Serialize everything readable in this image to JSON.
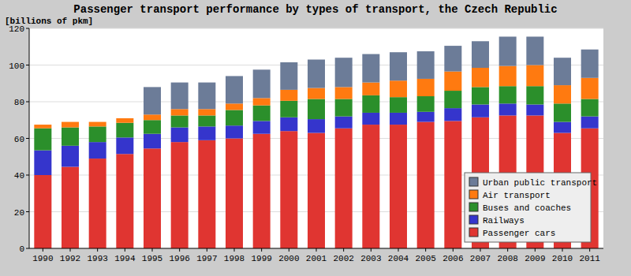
{
  "chart_data": {
    "type": "bar",
    "stacked": true,
    "grid": true,
    "legend": "bottom-right",
    "title": "Passenger transport performance by types of transport, the Czech Republic",
    "y_label": "[billions of pkm]",
    "categories": [
      "1990",
      "1992",
      "1993",
      "1994",
      "1995",
      "1996",
      "1997",
      "1998",
      "1999",
      "2000",
      "2001",
      "2002",
      "2003",
      "2004",
      "2005",
      "2006",
      "2007",
      "2008",
      "2009",
      "2010",
      "2011"
    ],
    "ylim": [
      0,
      120
    ],
    "yticks": [
      0,
      20,
      40,
      60,
      80,
      100,
      120
    ],
    "series": [
      {
        "name": "Passenger cars",
        "color": "#e03531",
        "values": [
          40,
          44.5,
          49,
          51.5,
          54.5,
          58,
          59,
          60,
          62.5,
          64,
          63,
          65.5,
          67.5,
          67.5,
          69,
          69.5,
          71.5,
          72.5,
          72.5,
          63,
          65.5
        ]
      },
      {
        "name": "Railways",
        "color": "#3535cc",
        "values": [
          13.5,
          11.5,
          9,
          9,
          8,
          8,
          7.5,
          7,
          7,
          7.5,
          7.5,
          6.5,
          6.5,
          6.5,
          5.5,
          7,
          7,
          6.5,
          6,
          6,
          6.5
        ]
      },
      {
        "name": "Buses and coaches",
        "color": "#2b8f2b",
        "values": [
          12,
          10,
          8.5,
          8,
          7.5,
          6.5,
          6,
          8.5,
          8.5,
          9,
          11,
          9.5,
          9.5,
          8.5,
          8.5,
          9.5,
          9.5,
          9.5,
          10,
          10,
          9.5
        ]
      },
      {
        "name": "Air transport",
        "color": "#ff7a10",
        "values": [
          2,
          3,
          2.5,
          2.5,
          3,
          3.5,
          3.5,
          3.5,
          4,
          6,
          6,
          6.5,
          7,
          9,
          9.5,
          10.5,
          10.5,
          11,
          11.5,
          10,
          11.5
        ]
      },
      {
        "name": "Urban public transport",
        "color": "#6c7c98",
        "values": [
          null,
          null,
          null,
          null,
          15,
          14.5,
          14.5,
          15,
          15.5,
          15,
          15.5,
          16,
          15.5,
          15.5,
          15,
          14,
          14.5,
          16,
          15.5,
          15,
          15.5
        ]
      }
    ]
  }
}
